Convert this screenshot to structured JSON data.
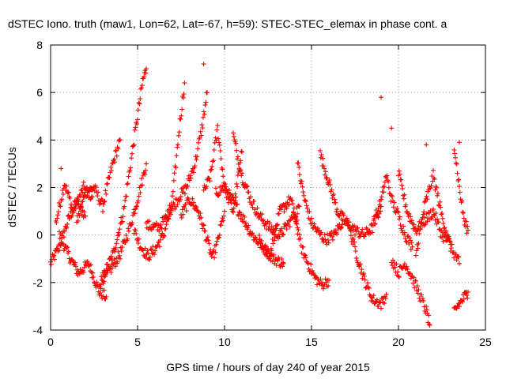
{
  "chart_data": {
    "type": "scatter",
    "title": "dSTEC Iono. truth (maw1, Lon=62, Lat=-67, h=59): STEC-STEC_elemax in phase cont. a",
    "xlabel": "GPS time / hours of day 240 of year 2015",
    "ylabel": "dSTEC  / TECUs",
    "xlim": [
      0,
      25
    ],
    "ylim": [
      -4,
      8
    ],
    "xticks": [
      0,
      5,
      10,
      15,
      20,
      25
    ],
    "yticks": [
      -4,
      -2,
      0,
      2,
      4,
      6,
      8
    ],
    "grid": true,
    "marker": "+",
    "series": [
      {
        "name": "dSTEC",
        "color": "#ff0000",
        "tracks": [
          {
            "t": [
              0.0,
              0.5,
              1.0,
              1.5,
              2.0
            ],
            "v": [
              -1.2,
              -0.5,
              0.6,
              1.4,
              0.8
            ]
          },
          {
            "t": [
              0.3,
              0.8,
              1.3,
              1.9,
              2.4
            ],
            "v": [
              0.5,
              2.2,
              1.0,
              2.0,
              1.6
            ]
          },
          {
            "t": [
              0.5,
              1.0,
              1.6,
              2.2,
              2.8,
              3.2
            ],
            "v": [
              0.0,
              -0.8,
              -1.6,
              -1.2,
              -2.4,
              -2.6
            ]
          },
          {
            "t": [
              1.5,
              2.0,
              2.5,
              3.0,
              3.5,
              4.0
            ],
            "v": [
              0.5,
              1.8,
              2.0,
              1.2,
              2.8,
              4.0
            ]
          },
          {
            "t": [
              3.0,
              3.6,
              4.2,
              4.6,
              5.0,
              5.3,
              5.5
            ],
            "v": [
              -1.8,
              -0.8,
              1.0,
              3.0,
              5.0,
              6.5,
              7.0
            ]
          },
          {
            "t": [
              2.8,
              3.4,
              4.0,
              4.5,
              5.0,
              5.5
            ],
            "v": [
              -2.0,
              -1.5,
              -0.8,
              0.2,
              1.5,
              3.0
            ]
          },
          {
            "t": [
              4.8,
              5.2,
              5.6,
              6.0,
              6.5,
              7.0,
              7.4,
              7.7
            ],
            "v": [
              0.2,
              -0.5,
              -0.9,
              -0.6,
              0.0,
              1.5,
              4.5,
              6.4
            ]
          },
          {
            "t": [
              5.5,
              6.2,
              6.8,
              7.3,
              7.8,
              8.3,
              8.7,
              9.0
            ],
            "v": [
              0.4,
              0.3,
              0.9,
              1.5,
              2.0,
              3.0,
              4.5,
              6.0
            ]
          },
          {
            "t": [
              7.5,
              8.0,
              8.5,
              9.0,
              9.3,
              9.6,
              10.0
            ],
            "v": [
              0.8,
              1.5,
              1.0,
              -0.2,
              -1.0,
              -0.3,
              1.0
            ]
          },
          {
            "t": [
              8.8,
              9.2,
              9.6,
              10.0,
              10.5,
              11.0
            ],
            "v": [
              1.8,
              2.5,
              4.5,
              2.0,
              1.0,
              3.5
            ]
          },
          {
            "t": [
              9.5,
              10.0,
              10.5,
              11.0,
              11.6,
              12.2,
              12.8,
              13.4
            ],
            "v": [
              1.8,
              2.0,
              1.4,
              0.8,
              0.0,
              -0.5,
              -1.0,
              -1.2
            ]
          },
          {
            "t": [
              10.5,
              11.0,
              11.5,
              12.0,
              12.6,
              13.2,
              13.8,
              14.3
            ],
            "v": [
              4.2,
              2.5,
              1.5,
              0.8,
              0.3,
              0.0,
              0.6,
              1.2
            ]
          },
          {
            "t": [
              12.0,
              12.6,
              13.2,
              13.8,
              14.2
            ],
            "v": [
              -0.2,
              -0.8,
              1.0,
              1.5,
              0.3
            ]
          },
          {
            "t": [
              14.0,
              14.4,
              14.8,
              15.2,
              15.6,
              16.0
            ],
            "v": [
              1.0,
              -0.5,
              -1.2,
              -1.8,
              -2.1,
              -1.9
            ]
          },
          {
            "t": [
              14.2,
              14.6,
              15.0,
              15.4,
              15.8,
              16.3,
              16.8
            ],
            "v": [
              3.0,
              1.5,
              0.5,
              0.1,
              -0.2,
              0.0,
              0.6
            ]
          },
          {
            "t": [
              15.5,
              16.0,
              16.5,
              17.0,
              17.5,
              18.0,
              18.5,
              19.0
            ],
            "v": [
              3.4,
              2.2,
              1.0,
              0.5,
              0.2,
              0.0,
              0.3,
              1.2
            ]
          },
          {
            "t": [
              17.0,
              17.5,
              18.0,
              18.5,
              19.0,
              19.3
            ],
            "v": [
              0.8,
              -0.6,
              -1.8,
              -2.7,
              -2.9,
              -2.5
            ]
          },
          {
            "t": [
              18.6,
              19.0,
              19.3,
              19.6,
              20.0,
              20.4,
              20.8
            ],
            "v": [
              0.6,
              1.4,
              2.5,
              1.5,
              0.8,
              0.0,
              -0.5
            ]
          },
          {
            "t": [
              19.6,
              20.0,
              20.4,
              20.8,
              21.2,
              21.6,
              21.8
            ],
            "v": [
              -1.0,
              -1.6,
              -1.2,
              -1.8,
              -2.5,
              -3.2,
              -3.8
            ]
          },
          {
            "t": [
              20.0,
              20.5,
              21.0,
              21.5,
              22.0,
              22.5,
              23.0
            ],
            "v": [
              2.6,
              1.0,
              0.2,
              0.6,
              1.0,
              0.0,
              -0.4
            ]
          },
          {
            "t": [
              21.0,
              21.5,
              22.0,
              22.5,
              23.0,
              23.5
            ],
            "v": [
              -0.8,
              1.2,
              2.5,
              0.8,
              -0.5,
              -1.2
            ]
          },
          {
            "t": [
              23.2,
              23.5,
              23.8,
              24.0
            ],
            "v": [
              -3.2,
              -2.9,
              -2.6,
              -2.4
            ]
          },
          {
            "t": [
              23.2,
              23.5,
              23.8,
              24.0
            ],
            "v": [
              3.8,
              2.0,
              0.5,
              0.2
            ]
          }
        ],
        "outliers": [
          {
            "t": [
              8.8
            ],
            "v": [
              7.2
            ]
          },
          {
            "t": [
              19.0
            ],
            "v": [
              5.8
            ]
          },
          {
            "t": [
              19.6
            ],
            "v": [
              4.5
            ]
          },
          {
            "t": [
              21.6
            ],
            "v": [
              3.8
            ]
          },
          {
            "t": [
              23.5
            ],
            "v": [
              3.9
            ]
          },
          {
            "t": [
              0.6
            ],
            "v": [
              2.8
            ]
          }
        ]
      }
    ]
  }
}
